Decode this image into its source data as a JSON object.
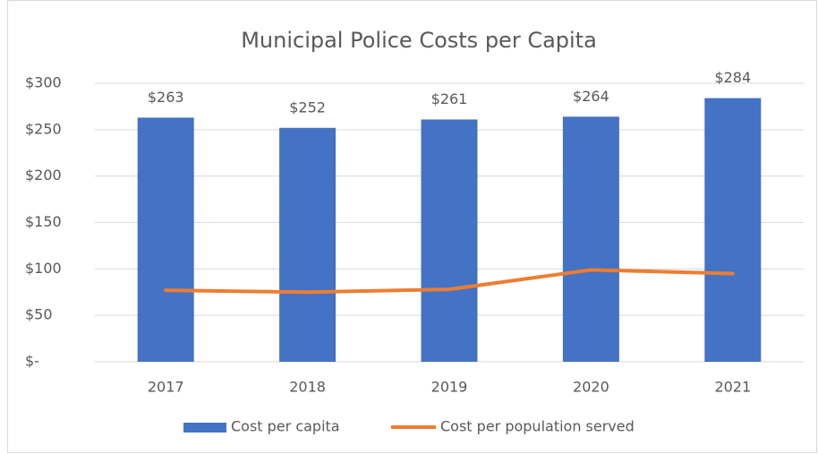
{
  "chart_data": {
    "type": "bar",
    "title": "Municipal Police Costs per Capita",
    "categories": [
      "2017",
      "2018",
      "2019",
      "2020",
      "2021"
    ],
    "series": [
      {
        "name": "Cost per capita",
        "type": "bar",
        "color": "#4472c4",
        "values": [
          263,
          252,
          261,
          264,
          284
        ],
        "value_labels": [
          "$263",
          "$252",
          "$261",
          "$264",
          "$284"
        ]
      },
      {
        "name": "Cost per population served",
        "type": "line",
        "color": "#ed7d31",
        "values": [
          77,
          75,
          78,
          99,
          95
        ]
      }
    ],
    "ylim": [
      0,
      300
    ],
    "yticks": [
      {
        "value": 0,
        "label": "$-"
      },
      {
        "value": 50,
        "label": "$50"
      },
      {
        "value": 100,
        "label": "$100"
      },
      {
        "value": 150,
        "label": "$150"
      },
      {
        "value": 200,
        "label": "$200"
      },
      {
        "value": 250,
        "label": "$250"
      },
      {
        "value": 300,
        "label": "$300"
      }
    ],
    "grid": true,
    "legend": "bottom"
  }
}
